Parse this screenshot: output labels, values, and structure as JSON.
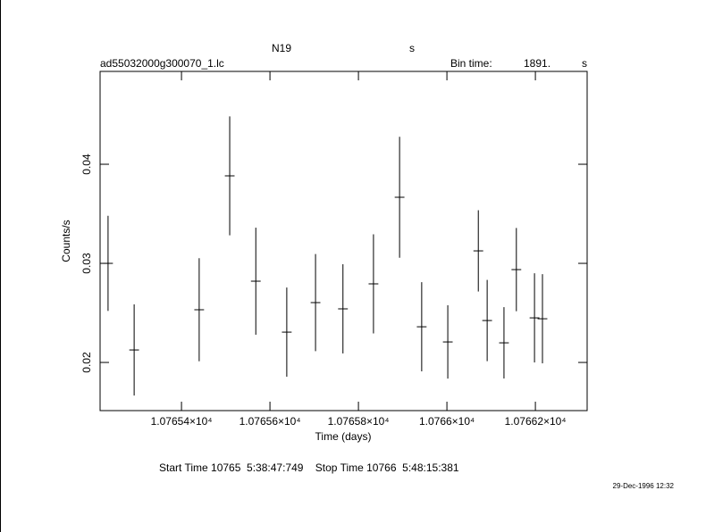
{
  "chart_data": {
    "type": "errorbar",
    "title": "N19",
    "title_right": "s",
    "subtitle": "ad55032000g300070_1.lc",
    "bin_label": "Bin time:",
    "bin_value": "1891.",
    "bin_unit": "s",
    "xlabel": "Time (days)",
    "ylabel": "Counts/s",
    "time_range": "Start Time 10765  5:38:47:749    Stop Time 10766  5:48:15:381",
    "date": "29-Dec-1996 12:32",
    "xlim": [
      10765.216,
      10766.317
    ],
    "ylim": [
      0.01514,
      0.04937
    ],
    "xticks": [
      {
        "value": 10765.4,
        "label": "1.07654×10⁴"
      },
      {
        "value": 10765.6,
        "label": "1.07656×10⁴"
      },
      {
        "value": 10765.8,
        "label": "1.07658×10⁴"
      },
      {
        "value": 10766.0,
        "label": "1.0766×10⁴"
      },
      {
        "value": 10766.2,
        "label": "1.07662×10⁴"
      }
    ],
    "yticks": [
      0.02,
      0.03,
      0.04
    ],
    "series": [
      {
        "color": "#000000",
        "x": [
          10765.234,
          10765.293,
          10765.44,
          10765.509,
          10765.568,
          10765.638,
          10765.703,
          10765.765,
          10765.834,
          10765.893,
          10765.943,
          10766.002,
          10766.071,
          10766.091,
          10766.129,
          10766.157,
          10766.198,
          10766.216
        ],
        "xerr": [
          0.011,
          0.011,
          0.011,
          0.011,
          0.011,
          0.011,
          0.011,
          0.011,
          0.011,
          0.011,
          0.011,
          0.011,
          0.011,
          0.011,
          0.011,
          0.011,
          0.011,
          0.011
        ],
        "values": [
          0.03,
          0.02126,
          0.02532,
          0.03883,
          0.0282,
          0.02306,
          0.02604,
          0.02541,
          0.02793,
          0.03667,
          0.0236,
          0.02207,
          0.03126,
          0.02423,
          0.02198,
          0.02937,
          0.0245,
          0.02441
        ],
        "errors": [
          0.0048,
          0.0046,
          0.0052,
          0.006,
          0.0054,
          0.0045,
          0.0049,
          0.0045,
          0.005,
          0.0061,
          0.0045,
          0.0037,
          0.0041,
          0.0041,
          0.0036,
          0.0042,
          0.0045,
          0.0045
        ]
      }
    ]
  }
}
